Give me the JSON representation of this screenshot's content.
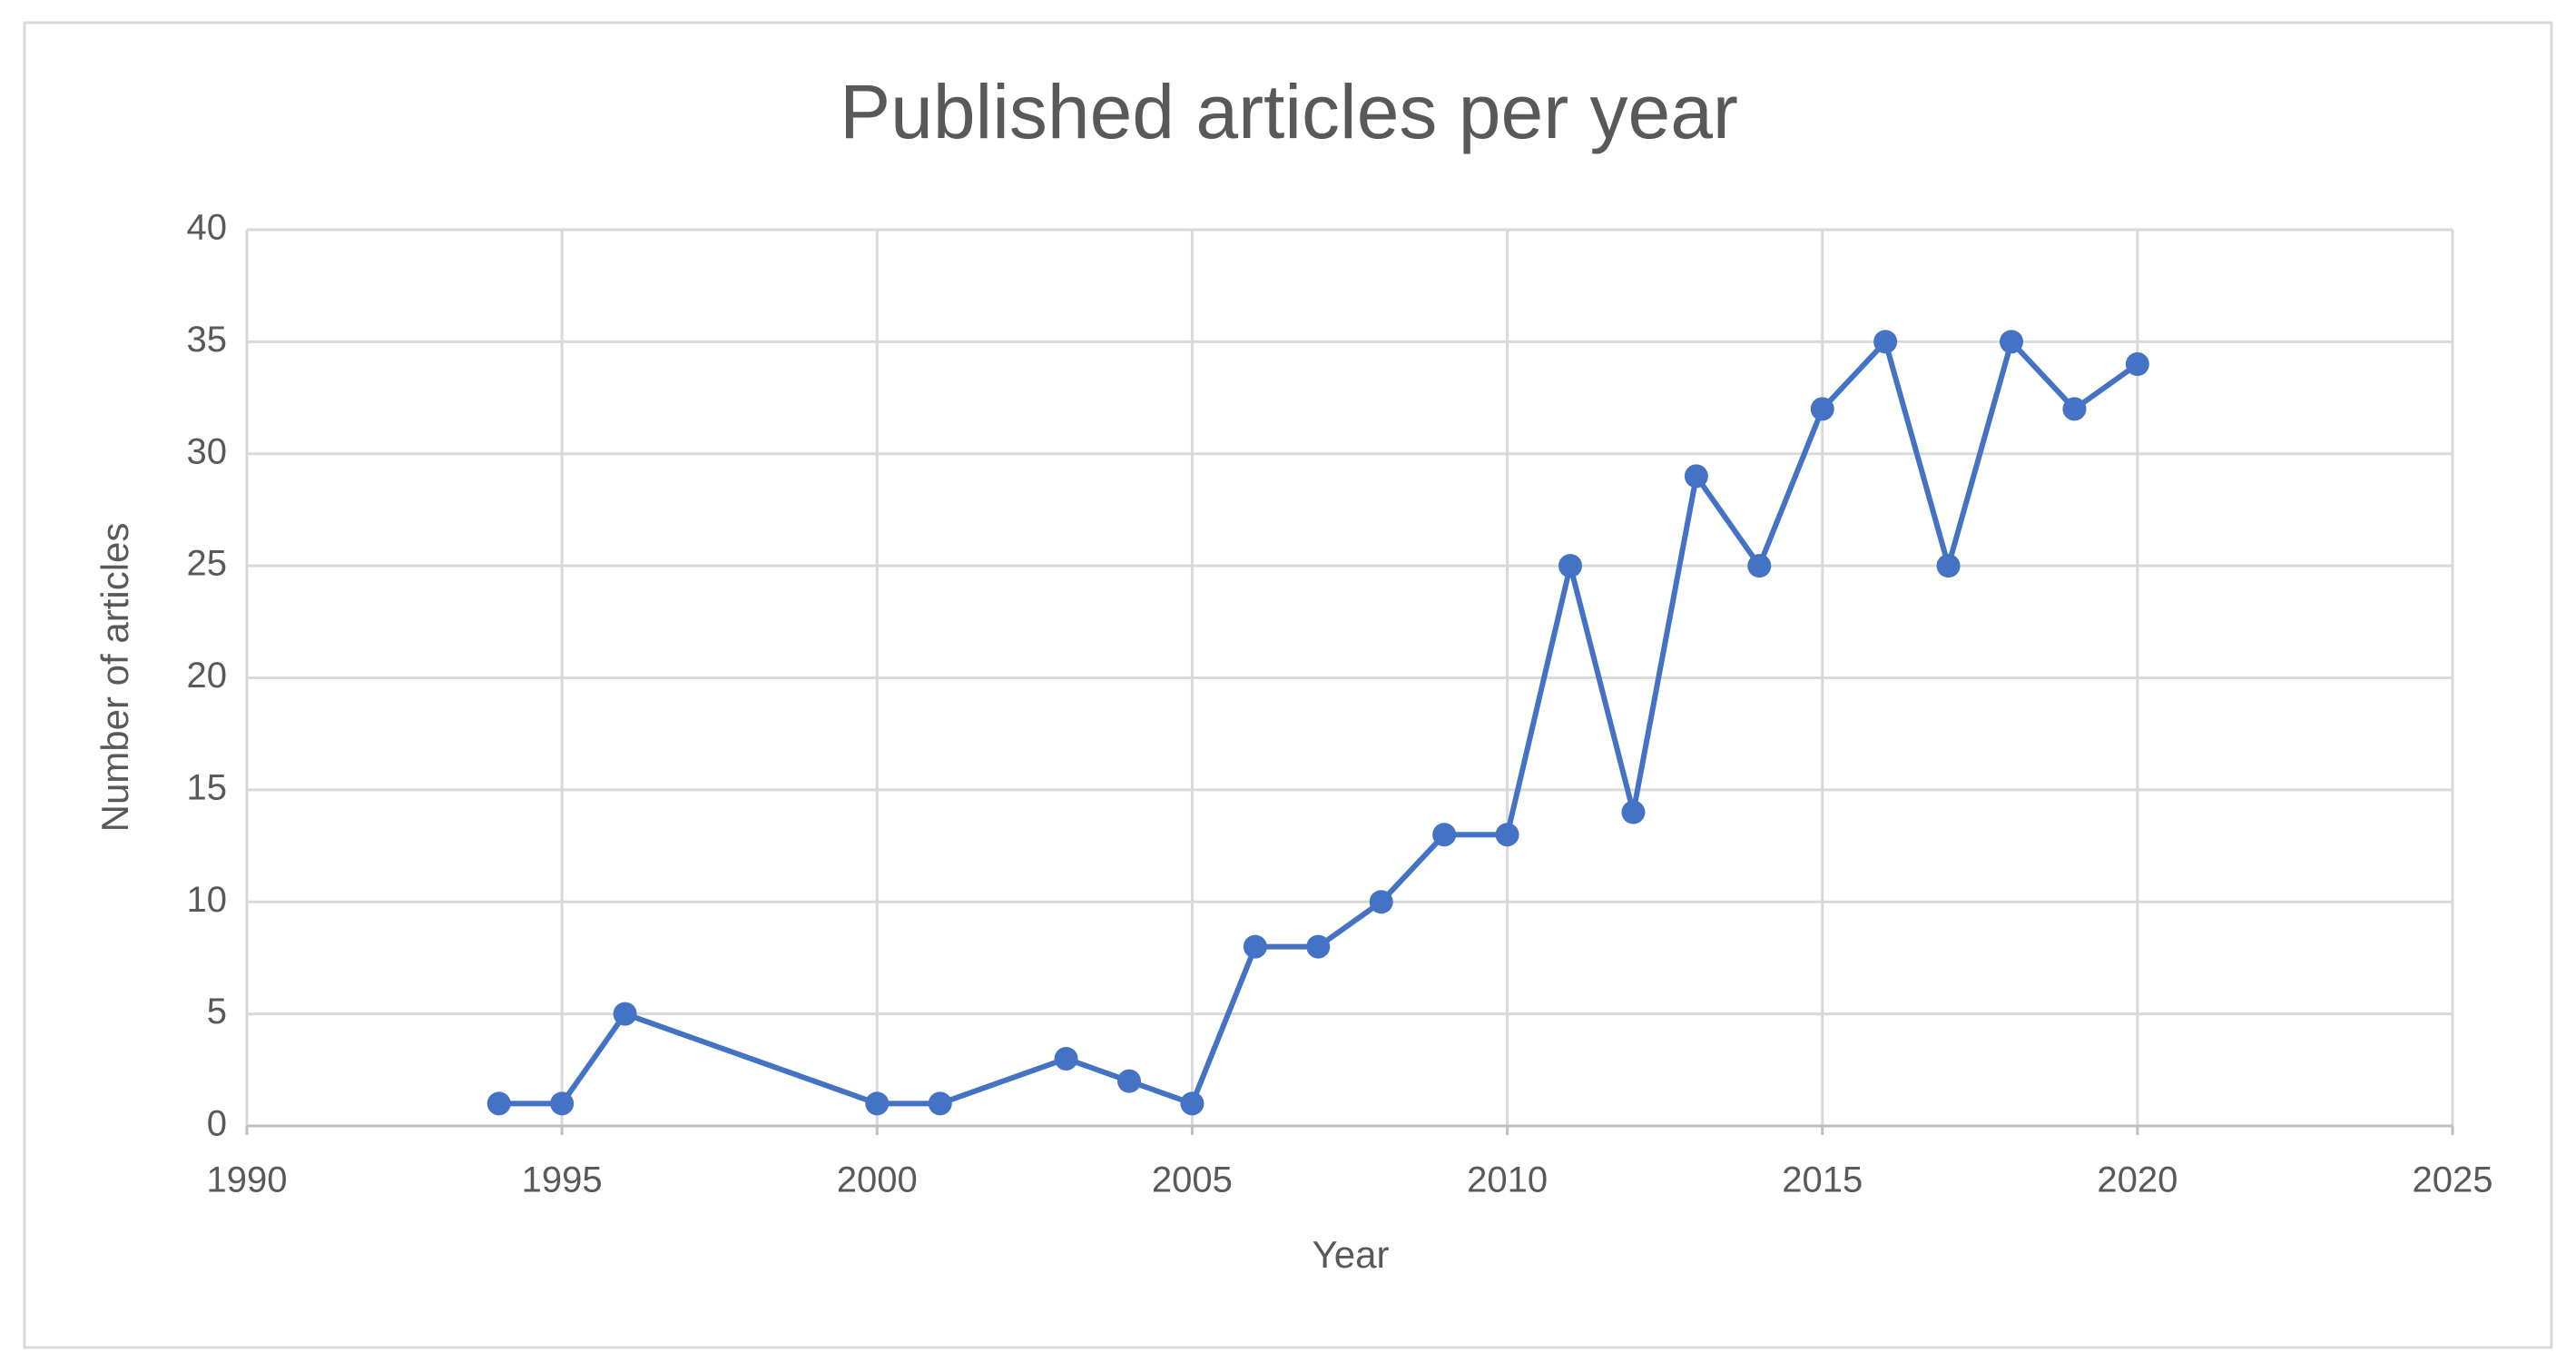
{
  "chart_data": {
    "type": "line",
    "title": "Published articles per year",
    "x_label": "Year",
    "y_label": "Number of articles",
    "x": [
      1994,
      1995,
      1996,
      2000,
      2001,
      2003,
      2004,
      2005,
      2006,
      2007,
      2008,
      2009,
      2010,
      2011,
      2012,
      2013,
      2014,
      2015,
      2016,
      2017,
      2018,
      2019,
      2020
    ],
    "values": [
      1,
      1,
      5,
      1,
      1,
      3,
      2,
      1,
      8,
      8,
      10,
      13,
      13,
      25,
      14,
      29,
      25,
      32,
      35,
      25,
      35,
      32,
      34
    ],
    "color": "#4472c4",
    "xlim": [
      1990,
      2025
    ],
    "xticks": [
      1990,
      1995,
      2000,
      2005,
      2010,
      2015,
      2020,
      2025
    ],
    "ylim": [
      0,
      40
    ],
    "yticks": [
      0,
      5,
      10,
      15,
      20,
      25,
      30,
      35,
      40
    ],
    "grid": true
  }
}
